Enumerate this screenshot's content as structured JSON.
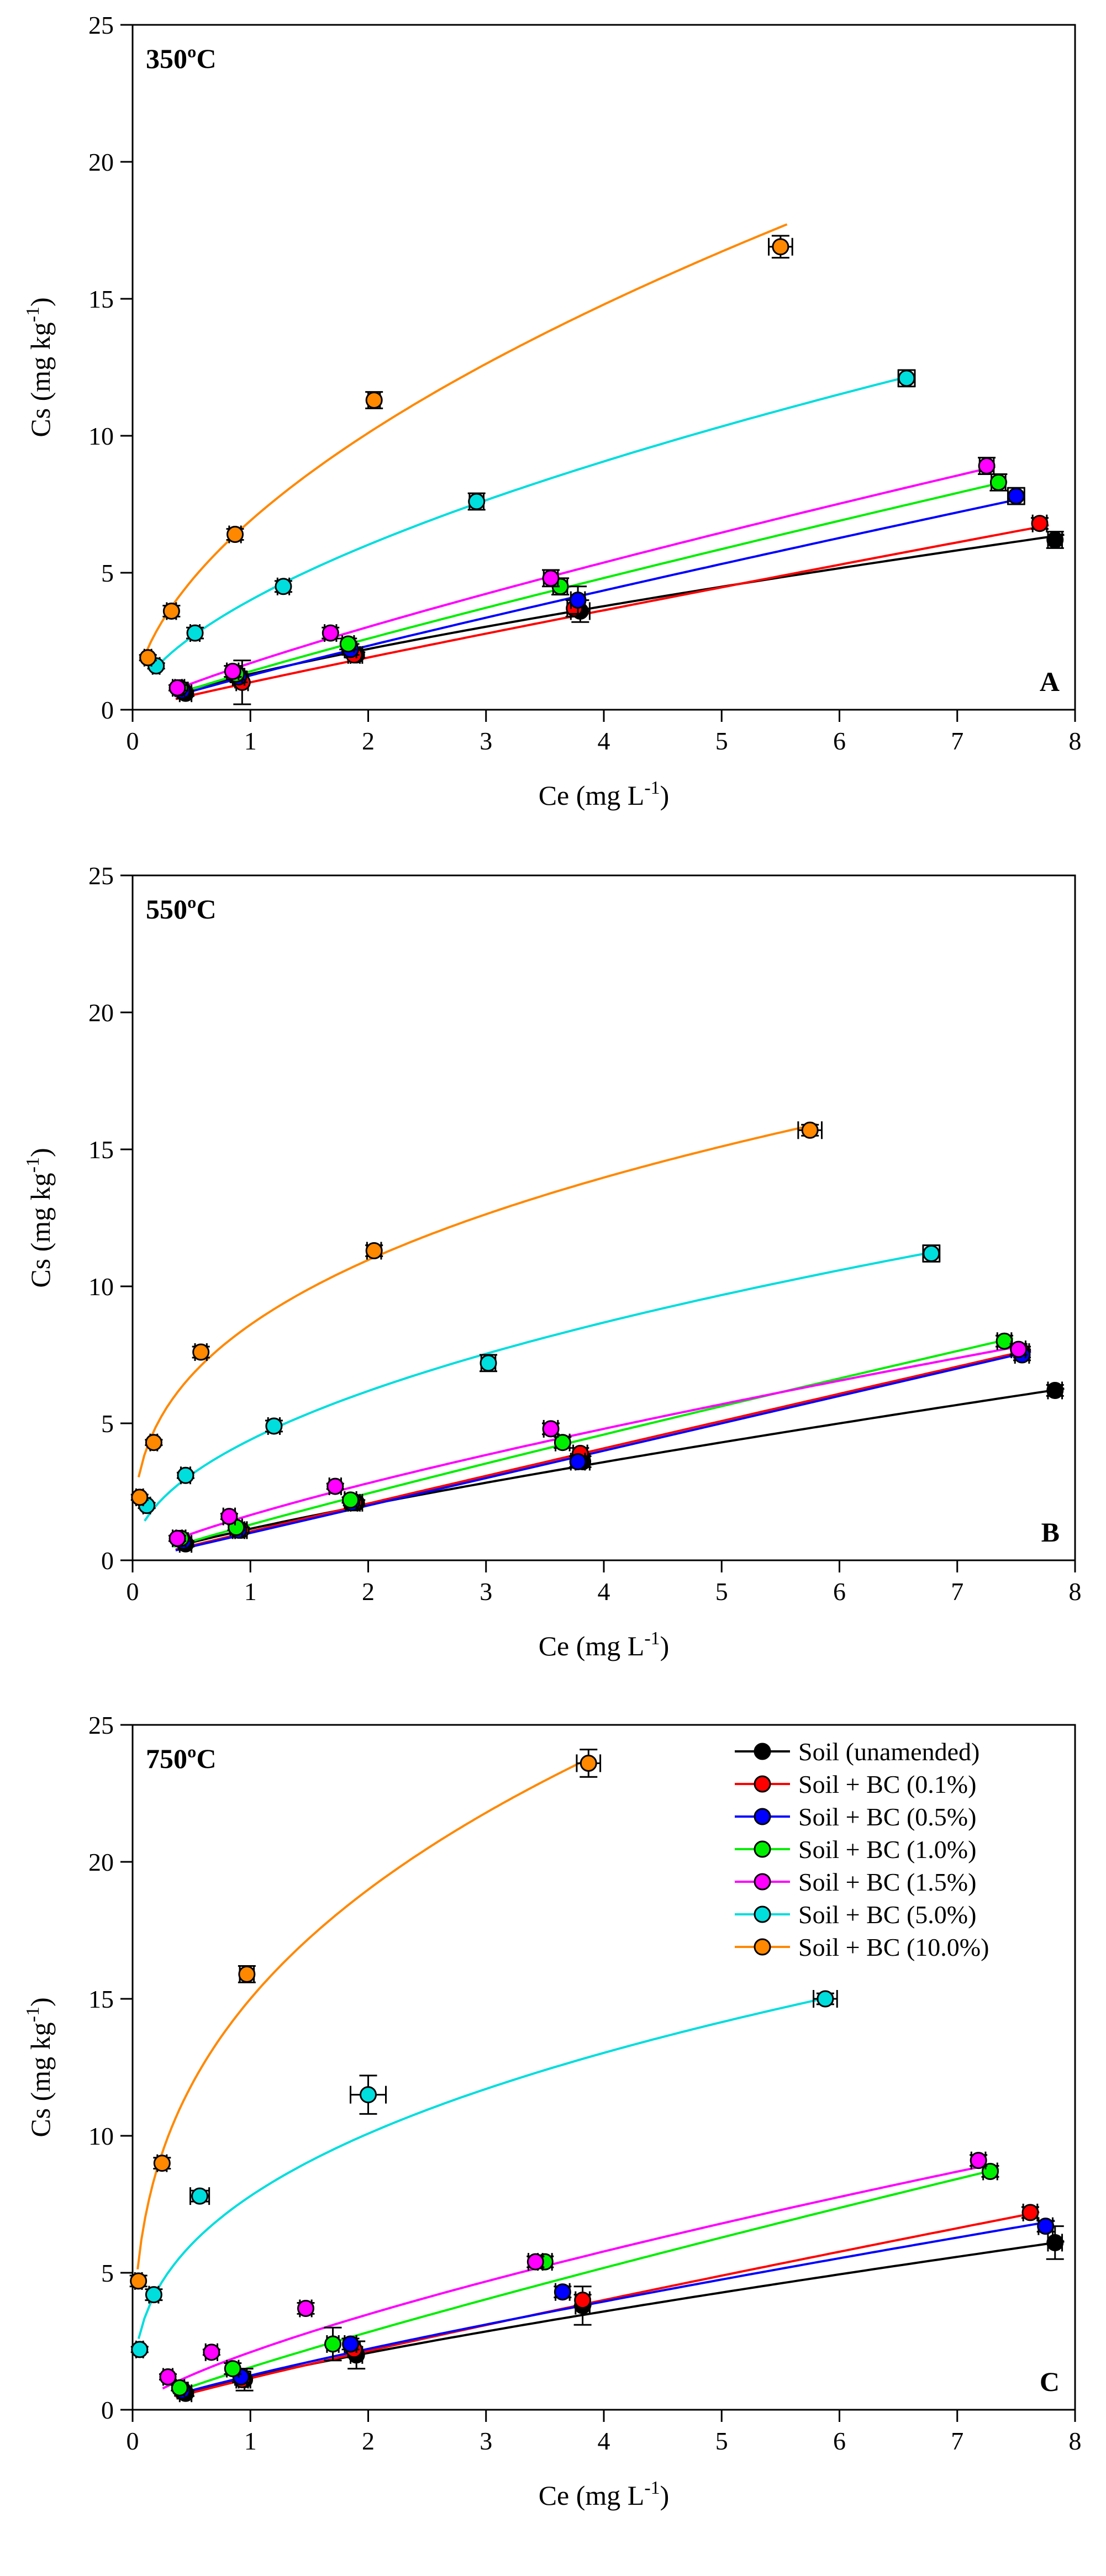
{
  "chart_data": [
    {
      "type": "scatter",
      "panel_title": "350ºC",
      "panel_letter": "A",
      "xlabel": "Ce (mg L",
      "xlabel_sup": "-1",
      "xlabel_end": ")",
      "ylabel": "Cs (mg kg",
      "ylabel_sup": "-1",
      "ylabel_end": ")",
      "xlim": [
        0,
        8
      ],
      "ylim": [
        0,
        25
      ],
      "xticks": [
        0,
        1,
        2,
        3,
        4,
        5,
        6,
        7,
        8
      ],
      "yticks": [
        0,
        5,
        10,
        15,
        20,
        25
      ],
      "series": [
        {
          "name": "Soil (unamended)",
          "color": "#000000",
          "x": [
            0.45,
            0.92,
            1.9,
            3.8,
            7.83
          ],
          "y": [
            0.6,
            1.1,
            2.0,
            3.6,
            6.2
          ],
          "xerr": [
            0.05,
            0.05,
            0.05,
            0.08,
            0.06
          ],
          "yerr": [
            0.1,
            0.2,
            0.1,
            0.4,
            0.3
          ],
          "fit": [
            1.3,
            0.77
          ]
        },
        {
          "name": "Soil + BC (0.1%)",
          "color": "#ff0000",
          "x": [
            0.43,
            0.93,
            1.88,
            3.75,
            7.7
          ],
          "y": [
            0.7,
            1.0,
            2.0,
            3.7,
            6.8
          ],
          "xerr": [
            0.04,
            0.05,
            0.05,
            0.06,
            0.06
          ],
          "yerr": [
            0.1,
            0.8,
            0.1,
            0.3,
            0.2
          ],
          "fit": [
            1.0,
            0.93
          ]
        },
        {
          "name": "Soil + BC (0.5%)",
          "color": "#0000ff",
          "x": [
            0.42,
            0.9,
            1.85,
            3.78,
            7.5
          ],
          "y": [
            0.7,
            1.2,
            2.2,
            4.0,
            7.8
          ],
          "xerr": [
            0.04,
            0.05,
            0.05,
            0.06,
            0.07
          ],
          "yerr": [
            0.1,
            0.2,
            0.2,
            0.5,
            0.3
          ],
          "fit": [
            1.25,
            0.9
          ]
        },
        {
          "name": "Soil + BC (1.0%)",
          "color": "#00ee00",
          "x": [
            0.4,
            0.88,
            1.83,
            3.63,
            7.35
          ],
          "y": [
            0.8,
            1.3,
            2.4,
            4.5,
            8.3
          ],
          "xerr": [
            0.04,
            0.05,
            0.05,
            0.06,
            0.06
          ],
          "yerr": [
            0.1,
            0.2,
            0.2,
            0.3,
            0.3
          ],
          "fit": [
            1.4,
            0.89
          ]
        },
        {
          "name": "Soil + BC (1.5%)",
          "color": "#ff00ff",
          "x": [
            0.38,
            0.85,
            1.68,
            3.55,
            7.25
          ],
          "y": [
            0.8,
            1.4,
            2.8,
            4.8,
            8.9
          ],
          "xerr": [
            0.04,
            0.05,
            0.05,
            0.06,
            0.06
          ],
          "yerr": [
            0.1,
            0.2,
            0.2,
            0.3,
            0.3
          ],
          "fit": [
            1.7,
            0.83
          ]
        },
        {
          "name": "Soil + BC (5.0%)",
          "color": "#00dddd",
          "x": [
            0.2,
            0.53,
            1.28,
            2.92,
            6.57
          ],
          "y": [
            1.6,
            2.8,
            4.5,
            7.6,
            12.1
          ],
          "xerr": [
            0.03,
            0.04,
            0.05,
            0.06,
            0.07
          ],
          "yerr": [
            0.1,
            0.2,
            0.2,
            0.3,
            0.3
          ],
          "fit": [
            4.0,
            0.59
          ]
        },
        {
          "name": "Soil + BC (10.0%)",
          "color": "#ff8800",
          "x": [
            0.13,
            0.33,
            0.87,
            2.05,
            5.5
          ],
          "y": [
            1.9,
            3.6,
            6.4,
            11.3,
            16.9
          ],
          "xerr": [
            0.03,
            0.04,
            0.05,
            0.05,
            0.1
          ],
          "yerr": [
            0.1,
            0.2,
            0.2,
            0.3,
            0.4
          ],
          "fit": [
            6.9,
            0.55
          ]
        }
      ]
    },
    {
      "type": "scatter",
      "panel_title": "550ºC",
      "panel_letter": "B",
      "xlabel": "Ce (mg L",
      "xlabel_sup": "-1",
      "xlabel_end": ")",
      "ylabel": "Cs (mg kg",
      "ylabel_sup": "-1",
      "ylabel_end": ")",
      "xlim": [
        0,
        8
      ],
      "ylim": [
        0,
        25
      ],
      "xticks": [
        0,
        1,
        2,
        3,
        4,
        5,
        6,
        7,
        8
      ],
      "yticks": [
        0,
        5,
        10,
        15,
        20,
        25
      ],
      "series": [
        {
          "name": "Soil (unamended)",
          "color": "#000000",
          "x": [
            0.45,
            0.92,
            1.9,
            3.82,
            7.83
          ],
          "y": [
            0.6,
            1.1,
            2.1,
            3.6,
            6.2
          ],
          "xerr": [
            0.05,
            0.05,
            0.05,
            0.06,
            0.06
          ],
          "yerr": [
            0.1,
            0.1,
            0.1,
            0.2,
            0.2
          ],
          "fit": [
            1.15,
            0.82
          ]
        },
        {
          "name": "Soil + BC (0.1%)",
          "color": "#ff0000",
          "x": [
            0.43,
            0.92,
            1.88,
            3.8,
            7.55
          ],
          "y": [
            0.7,
            1.1,
            2.1,
            3.9,
            7.6
          ],
          "xerr": [
            0.04,
            0.05,
            0.05,
            0.06,
            0.06
          ],
          "yerr": [
            0.1,
            0.1,
            0.1,
            0.2,
            0.2
          ],
          "fit": [
            1.05,
            0.98
          ]
        },
        {
          "name": "Soil + BC (0.5%)",
          "color": "#0000ff",
          "x": [
            0.43,
            0.9,
            1.86,
            3.78,
            7.55
          ],
          "y": [
            0.7,
            1.1,
            2.1,
            3.6,
            7.5
          ],
          "xerr": [
            0.04,
            0.05,
            0.05,
            0.06,
            0.06
          ],
          "yerr": [
            0.1,
            0.1,
            0.1,
            0.2,
            0.2
          ],
          "fit": [
            1.0,
            1.0
          ]
        },
        {
          "name": "Soil + BC (1.0%)",
          "color": "#00ee00",
          "x": [
            0.41,
            0.88,
            1.85,
            3.65,
            7.4
          ],
          "y": [
            0.8,
            1.2,
            2.2,
            4.3,
            8.0
          ],
          "xerr": [
            0.04,
            0.05,
            0.05,
            0.06,
            0.06
          ],
          "yerr": [
            0.1,
            0.1,
            0.1,
            0.2,
            0.2
          ],
          "fit": [
            1.3,
            0.91
          ]
        },
        {
          "name": "Soil + BC (1.5%)",
          "color": "#ff00ff",
          "x": [
            0.38,
            0.82,
            1.72,
            3.55,
            7.52
          ],
          "y": [
            0.8,
            1.6,
            2.7,
            4.8,
            7.7
          ],
          "xerr": [
            0.04,
            0.05,
            0.05,
            0.06,
            0.06
          ],
          "yerr": [
            0.1,
            0.1,
            0.1,
            0.2,
            0.2
          ],
          "fit": [
            1.65,
            0.77
          ]
        },
        {
          "name": "Soil + BC (5.0%)",
          "color": "#00dddd",
          "x": [
            0.12,
            0.45,
            1.2,
            3.02,
            6.78
          ],
          "y": [
            2.0,
            3.1,
            4.9,
            7.2,
            11.2
          ],
          "xerr": [
            0.03,
            0.04,
            0.05,
            0.06,
            0.07
          ],
          "yerr": [
            0.1,
            0.1,
            0.2,
            0.3,
            0.3
          ],
          "fit": [
            4.4,
            0.49
          ]
        },
        {
          "name": "Soil + BC (10.0%)",
          "color": "#ff8800",
          "x": [
            0.06,
            0.18,
            0.58,
            2.05,
            5.75
          ],
          "y": [
            2.3,
            4.3,
            7.6,
            11.3,
            15.7
          ],
          "xerr": [
            0.03,
            0.03,
            0.05,
            0.06,
            0.1
          ],
          "yerr": [
            0.1,
            0.1,
            0.2,
            0.2,
            0.2
          ],
          "fit": [
            8.6,
            0.35
          ]
        }
      ]
    },
    {
      "type": "scatter",
      "panel_title": "750ºC",
      "panel_letter": "C",
      "xlabel": "Ce (mg L",
      "xlabel_sup": "-1",
      "xlabel_end": ")",
      "ylabel": "Cs (mg kg",
      "ylabel_sup": "-1",
      "ylabel_end": ")",
      "xlim": [
        0,
        8
      ],
      "ylim": [
        0,
        25
      ],
      "xticks": [
        0,
        1,
        2,
        3,
        4,
        5,
        6,
        7,
        8
      ],
      "yticks": [
        0,
        5,
        10,
        15,
        20,
        25
      ],
      "legend": "top-right",
      "series": [
        {
          "name": "Soil (unamended)",
          "color": "#000000",
          "x": [
            0.45,
            0.95,
            1.9,
            3.82,
            7.83
          ],
          "y": [
            0.6,
            1.1,
            2.0,
            3.8,
            6.1
          ],
          "xerr": [
            0.05,
            0.05,
            0.05,
            0.06,
            0.06
          ],
          "yerr": [
            0.1,
            0.4,
            0.5,
            0.7,
            0.6
          ],
          "fit": [
            1.2,
            0.79
          ]
        },
        {
          "name": "Soil + BC (0.1%)",
          "color": "#ff0000",
          "x": [
            0.43,
            0.93,
            1.88,
            3.82,
            7.62
          ],
          "y": [
            0.7,
            1.1,
            2.2,
            4.0,
            7.2
          ],
          "xerr": [
            0.04,
            0.05,
            0.05,
            0.06,
            0.06
          ],
          "yerr": [
            0.1,
            0.1,
            0.1,
            0.2,
            0.2
          ],
          "fit": [
            1.15,
            0.9
          ]
        },
        {
          "name": "Soil + BC (0.5%)",
          "color": "#0000ff",
          "x": [
            0.42,
            0.92,
            1.85,
            3.65,
            7.75
          ],
          "y": [
            0.7,
            1.2,
            2.4,
            4.3,
            6.7
          ],
          "xerr": [
            0.04,
            0.05,
            0.05,
            0.06,
            0.06
          ],
          "yerr": [
            0.1,
            0.2,
            0.2,
            0.2,
            0.2
          ],
          "fit": [
            1.25,
            0.83
          ]
        },
        {
          "name": "Soil + BC (1.0%)",
          "color": "#00ee00",
          "x": [
            0.4,
            0.85,
            1.7,
            3.5,
            7.28
          ],
          "y": [
            0.8,
            1.5,
            2.4,
            5.4,
            8.7
          ],
          "xerr": [
            0.04,
            0.05,
            0.05,
            0.06,
            0.06
          ],
          "yerr": [
            0.1,
            0.2,
            0.6,
            0.2,
            0.2
          ],
          "fit": [
            1.55,
            0.87
          ]
        },
        {
          "name": "Soil + BC (1.5%)",
          "color": "#ff00ff",
          "x": [
            0.3,
            0.67,
            1.47,
            3.42,
            7.18
          ],
          "y": [
            1.2,
            2.1,
            3.7,
            5.4,
            9.1
          ],
          "xerr": [
            0.04,
            0.05,
            0.05,
            0.06,
            0.06
          ],
          "yerr": [
            0.1,
            0.1,
            0.2,
            0.2,
            0.2
          ],
          "fit": [
            2.1,
            0.73
          ]
        },
        {
          "name": "Soil + BC (5.0%)",
          "color": "#00dddd",
          "x": [
            0.06,
            0.18,
            0.57,
            2.0,
            5.88
          ],
          "y": [
            2.2,
            4.2,
            7.8,
            11.5,
            15.0
          ],
          "xerr": [
            0.03,
            0.04,
            0.08,
            0.15,
            0.1
          ],
          "yerr": [
            0.1,
            0.2,
            0.2,
            0.7,
            0.2
          ],
          "fit": [
            7.8,
            0.37
          ]
        },
        {
          "name": "Soil + BC (10.0%)",
          "color": "#ff8800",
          "x": [
            0.05,
            0.25,
            0.97,
            3.87
          ],
          "y": [
            4.7,
            9.0,
            15.9,
            23.6
          ],
          "xerr": [
            0.03,
            0.04,
            0.06,
            0.1
          ],
          "yerr": [
            0.2,
            0.2,
            0.3,
            0.5
          ],
          "fit": [
            15.0,
            0.34
          ]
        }
      ]
    }
  ]
}
